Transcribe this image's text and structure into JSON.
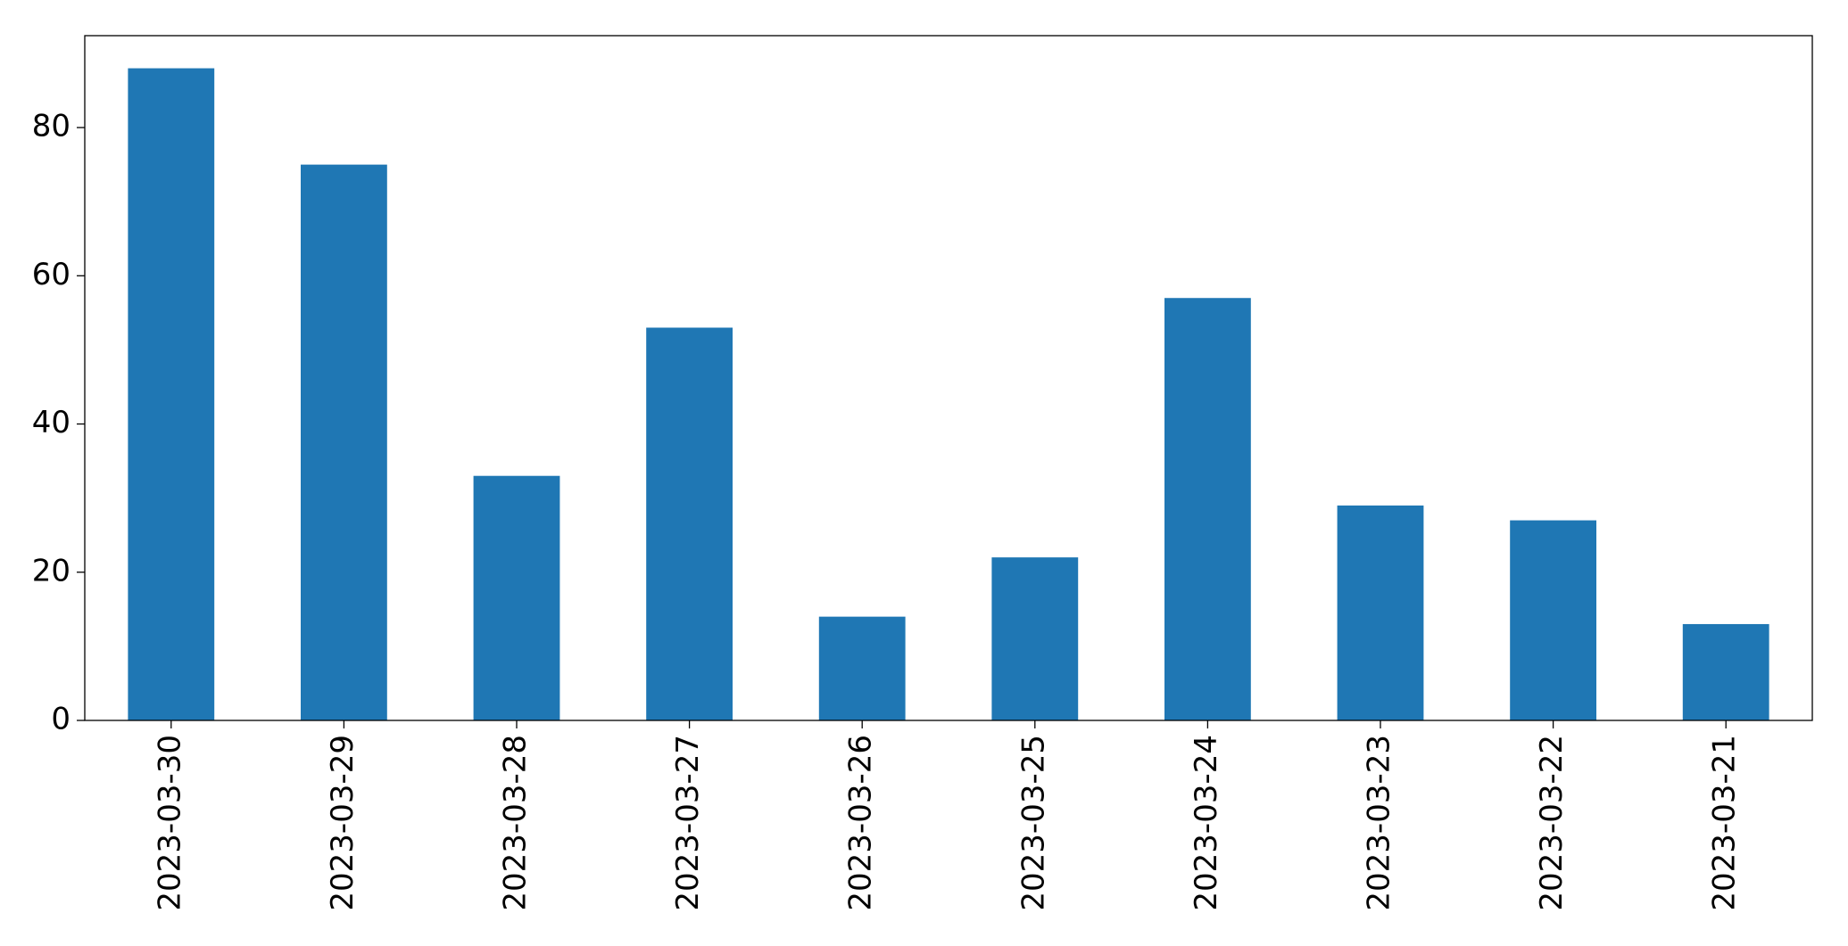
{
  "chart_data": {
    "type": "bar",
    "categories": [
      "2023-03-30",
      "2023-03-29",
      "2023-03-28",
      "2023-03-27",
      "2023-03-26",
      "2023-03-25",
      "2023-03-24",
      "2023-03-23",
      "2023-03-22",
      "2023-03-21"
    ],
    "values": [
      88,
      75,
      33,
      53,
      14,
      22,
      57,
      29,
      27,
      13
    ],
    "color": "#1f77b4",
    "ylim": [
      0,
      92.4
    ],
    "yticks": [
      0,
      20,
      40,
      60,
      80
    ],
    "grid": false
  }
}
